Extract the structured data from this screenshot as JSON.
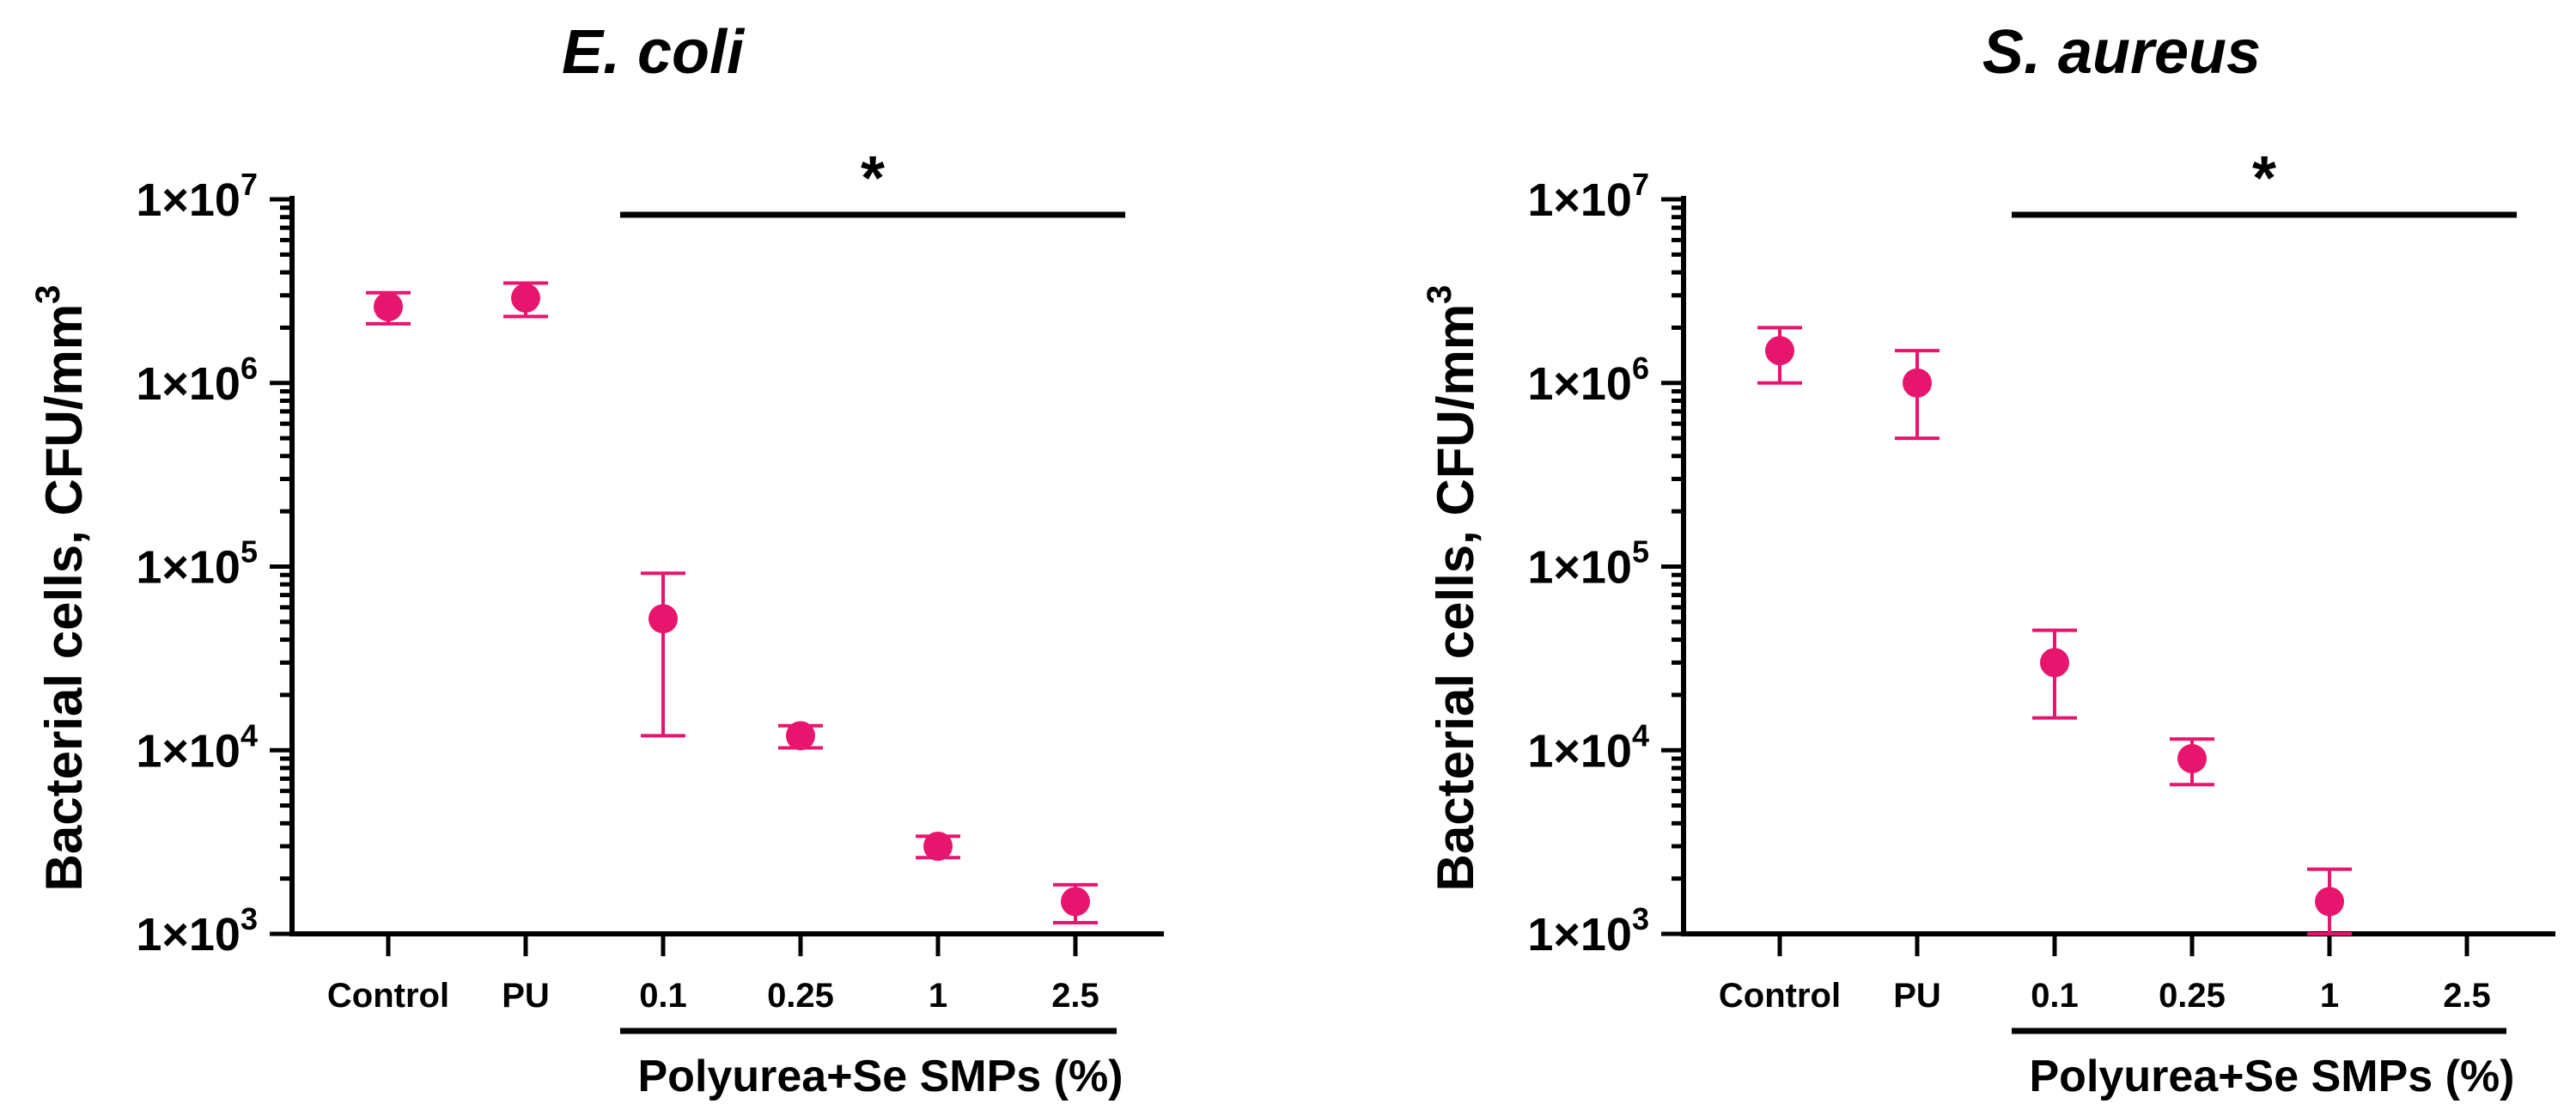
{
  "chart_data": [
    {
      "type": "scatter",
      "title": "E. coli",
      "ylabel": "Bacterial cells, CFU/mm",
      "ylabel_superscript": "3",
      "yscale": "log",
      "ylim": [
        1000,
        10000000
      ],
      "yticks": [
        {
          "base": "1×10",
          "exp": "3"
        },
        {
          "base": "1×10",
          "exp": "4"
        },
        {
          "base": "1×10",
          "exp": "5"
        },
        {
          "base": "1×10",
          "exp": "6"
        },
        {
          "base": "1×10",
          "exp": "7"
        }
      ],
      "categories": [
        "Control",
        "PU",
        "0.1",
        "0.25",
        "1",
        "2.5"
      ],
      "group_label": "Polyurea+Se SMPs (%)",
      "significance": "*",
      "color": "#e8156f",
      "points": [
        {
          "category": "Control",
          "value": 2600000,
          "low": 2100000,
          "high": 3100000
        },
        {
          "category": "PU",
          "value": 2900000,
          "low": 2300000,
          "high": 3500000
        },
        {
          "category": "0.1",
          "value": 52000,
          "low": 12000,
          "high": 92000
        },
        {
          "category": "0.25",
          "value": 12000,
          "low": 10300,
          "high": 13600
        },
        {
          "category": "1",
          "value": 3000,
          "low": 2600,
          "high": 3400
        },
        {
          "category": "2.5",
          "value": 1500,
          "low": 1150,
          "high": 1850
        }
      ]
    },
    {
      "type": "scatter",
      "title": "S. aureus",
      "ylabel": "Bacterial cells, CFU/mm",
      "ylabel_superscript": "3",
      "yscale": "log",
      "ylim": [
        1000,
        10000000
      ],
      "yticks": [
        {
          "base": "1×10",
          "exp": "3"
        },
        {
          "base": "1×10",
          "exp": "4"
        },
        {
          "base": "1×10",
          "exp": "5"
        },
        {
          "base": "1×10",
          "exp": "6"
        },
        {
          "base": "1×10",
          "exp": "7"
        }
      ],
      "categories": [
        "Control",
        "PU",
        "0.1",
        "0.25",
        "1",
        "2.5"
      ],
      "group_label": "Polyurea+Se SMPs (%)",
      "significance": "*",
      "color": "#e8156f",
      "points": [
        {
          "category": "Control",
          "value": 1500000,
          "low": 1000000,
          "high": 2000000
        },
        {
          "category": "PU",
          "value": 1000000,
          "low": 500000,
          "high": 1500000
        },
        {
          "category": "0.1",
          "value": 30000,
          "low": 15000,
          "high": 45000
        },
        {
          "category": "0.25",
          "value": 9000,
          "low": 6500,
          "high": 11500
        },
        {
          "category": "1",
          "value": 1500,
          "low": 1000,
          "high": 2250
        }
      ]
    }
  ]
}
